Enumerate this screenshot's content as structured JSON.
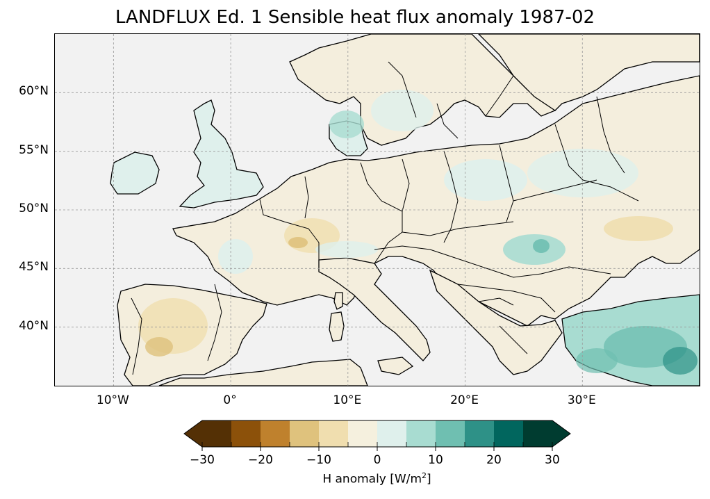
{
  "title": "LANDFLUX Ed. 1 Sensible heat flux anomaly 1987-02",
  "map": {
    "lon_range": [
      -15,
      40
    ],
    "lat_range": [
      35,
      65
    ],
    "lon_ticks": [
      {
        "lon": -10,
        "label": "10°W"
      },
      {
        "lon": 0,
        "label": "0°"
      },
      {
        "lon": 10,
        "label": "10°E"
      },
      {
        "lon": 20,
        "label": "20°E"
      },
      {
        "lon": 30,
        "label": "30°E"
      }
    ],
    "lat_ticks": [
      {
        "lat": 40,
        "label": "40°N"
      },
      {
        "lat": 45,
        "label": "45°N"
      },
      {
        "lat": 50,
        "label": "50°N"
      },
      {
        "lat": 55,
        "label": "55°N"
      },
      {
        "lat": 60,
        "label": "60°N"
      }
    ],
    "grid": true,
    "ocean_color": "#f2f2f2",
    "coastline_color": "#000000"
  },
  "colorbar": {
    "label_text": "H anomaly [W/m",
    "label_sup": "2",
    "label_end": "]",
    "min": -30,
    "max": 30,
    "step": 5,
    "extend": "both",
    "tick_values": [
      -30,
      -20,
      -10,
      0,
      10,
      20,
      30
    ],
    "tick_labels": [
      "−30",
      "−20",
      "−10",
      "0",
      "10",
      "20",
      "30"
    ],
    "colors": [
      "#543005",
      "#8c510a",
      "#bf812d",
      "#dfc27d",
      "#f0deaf",
      "#f5f0de",
      "#dff0ec",
      "#a8dcd1",
      "#6fbfb1",
      "#2e9187",
      "#01665e",
      "#003c30"
    ],
    "under_color": "#543005",
    "over_color": "#003c30"
  }
}
